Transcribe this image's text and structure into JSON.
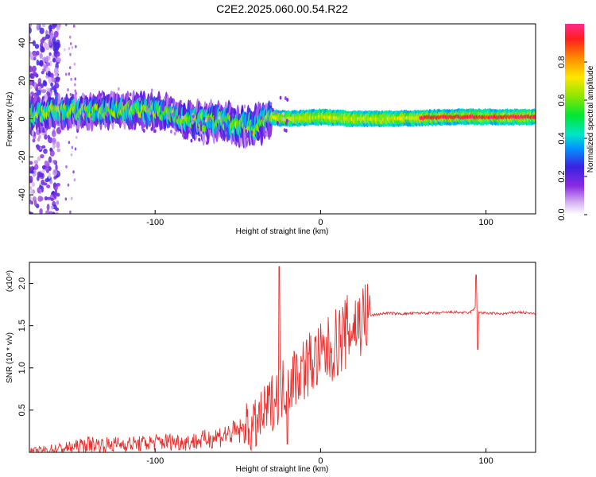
{
  "title": "C2E2.2025.060.00.54.R22",
  "chart_data": [
    {
      "type": "heatmap",
      "xlabel": "Height of straight line (km)",
      "ylabel": "Frequency (Hz)",
      "xlim": [
        -176,
        130
      ],
      "ylim": [
        -50,
        50
      ],
      "xticks": [
        -100,
        0,
        100
      ],
      "yticks": [
        -40,
        -20,
        0,
        20,
        40
      ],
      "colorbar": {
        "label": "Normalized spectral amplitude",
        "range": [
          0,
          1
        ],
        "ticks": [
          "0.0",
          "0.2",
          "0.4",
          "0.6",
          "0.8"
        ]
      },
      "ridge": [
        [
          -176,
          2
        ],
        [
          -160,
          4
        ],
        [
          -140,
          4
        ],
        [
          -120,
          5
        ],
        [
          -100,
          4
        ],
        [
          -90,
          3
        ],
        [
          -80,
          -1
        ],
        [
          -70,
          -2
        ],
        [
          -60,
          -1
        ],
        [
          -50,
          -3
        ],
        [
          -40,
          -4
        ],
        [
          -30,
          1
        ],
        [
          -20,
          0
        ],
        [
          0,
          1
        ],
        [
          20,
          0
        ],
        [
          40,
          0
        ],
        [
          60,
          0.5
        ],
        [
          80,
          1
        ],
        [
          100,
          1
        ],
        [
          130,
          1
        ]
      ],
      "scatter_note": "broadband noise for heights below -160"
    },
    {
      "type": "line",
      "xlabel": "Height of straight line (km)",
      "ylabel": "SNR (10 * v/v)",
      "y_multiplier": "(x10⁴)",
      "xlim": [
        -176,
        130
      ],
      "ylim": [
        0,
        2.25
      ],
      "xticks": [
        -100,
        0,
        100
      ],
      "yticks": [
        "0.5",
        "1.0",
        "1.5",
        "2.0"
      ],
      "color": "#e8302e",
      "series": [
        {
          "x": [
            -176,
            -160,
            -150,
            -140,
            -130,
            -120,
            -110,
            -100,
            -90,
            -80,
            -70,
            -60,
            -50,
            -40,
            -35,
            -30,
            -25,
            -20,
            -15,
            -10,
            -5,
            0,
            5,
            10,
            15,
            20,
            25,
            30,
            40,
            50,
            60,
            70,
            80,
            90,
            94,
            96,
            98,
            100,
            110,
            120,
            130
          ],
          "y": [
            0.0,
            0.04,
            0.06,
            0.1,
            0.09,
            0.1,
            0.1,
            0.12,
            0.13,
            0.12,
            0.15,
            0.2,
            0.24,
            0.3,
            0.42,
            0.58,
            0.7,
            0.82,
            0.92,
            1.0,
            1.08,
            1.12,
            1.2,
            1.3,
            1.4,
            1.5,
            1.58,
            1.62,
            1.65,
            1.64,
            1.65,
            1.65,
            1.66,
            1.65,
            1.72,
            1.66,
            1.65,
            1.65,
            1.64,
            1.66,
            1.64
          ]
        }
      ],
      "spikes": [
        {
          "x": -25,
          "y": 2.2
        },
        {
          "x": -20,
          "y": 0.1
        },
        {
          "x": 94,
          "y": 2.1
        },
        {
          "x": 95,
          "y": 1.22
        }
      ]
    }
  ]
}
